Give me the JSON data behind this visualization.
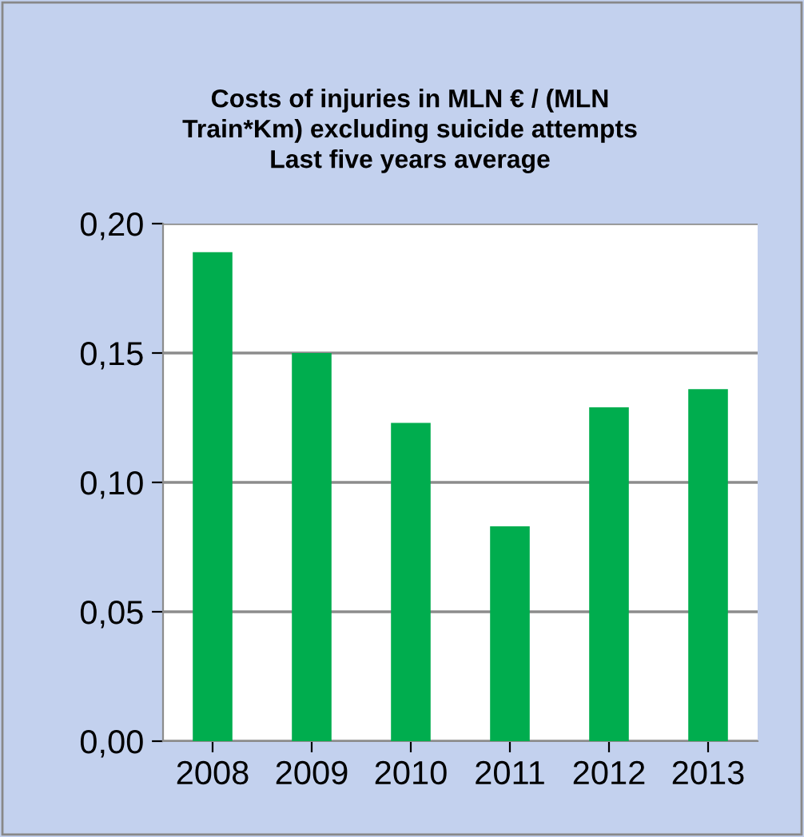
{
  "chart_data": {
    "type": "bar",
    "title": "Costs of injuries in MLN € / (MLN\nTrain*Km) excluding suicide attempts\nLast five years average",
    "categories": [
      "2008",
      "2009",
      "2010",
      "2011",
      "2012",
      "2013"
    ],
    "values": [
      0.189,
      0.15,
      0.123,
      0.083,
      0.129,
      0.136
    ],
    "color": "#00ad4e",
    "ylim": [
      0,
      0.2
    ],
    "yticks": [
      {
        "value": 0,
        "label": "0,00"
      },
      {
        "value": 0.05,
        "label": "0,05"
      },
      {
        "value": 0.1,
        "label": "0,10"
      },
      {
        "value": 0.15,
        "label": "0,15"
      },
      {
        "value": 0.2,
        "label": "0,20"
      }
    ],
    "grid": "y",
    "legend": false
  }
}
